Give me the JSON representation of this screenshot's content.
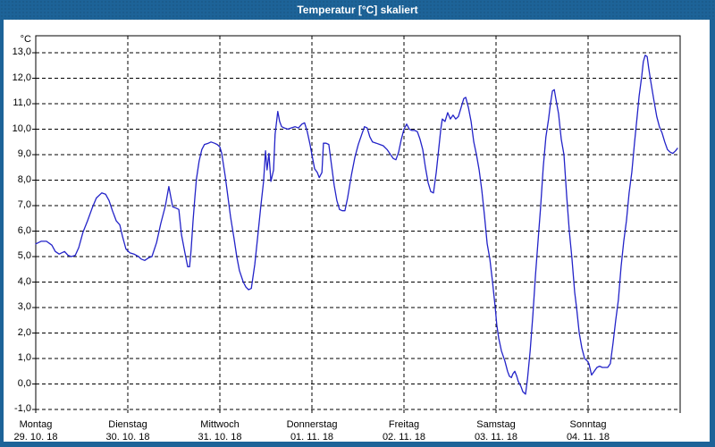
{
  "window": {
    "title": "Temperatur [°C] skaliert"
  },
  "colors": {
    "frame": "#1d6398",
    "title_text": "#ffffff",
    "plot_line": "#2323c8",
    "grid": "#000000",
    "background": "#ffffff"
  },
  "chart_data": {
    "type": "line",
    "title": "Temperatur [°C] skaliert",
    "unit_label": "°C",
    "ylim": [
      -1.0,
      13.0
    ],
    "xlim_hours": [
      0,
      168
    ],
    "grid": "dashed",
    "legend": "none",
    "y_ticks": [
      "13,0",
      "12,0",
      "11,0",
      "10,0",
      "9,0",
      "8,0",
      "7,0",
      "6,0",
      "5,0",
      "4,0",
      "3,0",
      "2,0",
      "1,0",
      "0,0",
      "-1,0"
    ],
    "x_days": [
      {
        "name": "Montag",
        "date": "29. 10. 18"
      },
      {
        "name": "Dienstag",
        "date": "30. 10. 18"
      },
      {
        "name": "Mittwoch",
        "date": "31. 10. 18"
      },
      {
        "name": "Donnerstag",
        "date": "01. 11. 18"
      },
      {
        "name": "Freitag",
        "date": "02. 11. 18"
      },
      {
        "name": "Samstag",
        "date": "03. 11. 18"
      },
      {
        "name": "Sonntag",
        "date": "04. 11. 18"
      }
    ],
    "series": [
      {
        "name": "Temperatur",
        "color": "#2323c8",
        "points": [
          [
            0,
            5.5
          ],
          [
            1.4,
            5.6
          ],
          [
            2.8,
            5.6
          ],
          [
            4.2,
            5.45
          ],
          [
            5.1,
            5.2
          ],
          [
            6.1,
            5.1
          ],
          [
            7.5,
            5.2
          ],
          [
            8.4,
            5.05
          ],
          [
            9.3,
            5.0
          ],
          [
            10.3,
            5.05
          ],
          [
            11.2,
            5.35
          ],
          [
            12.3,
            5.95
          ],
          [
            13.5,
            6.4
          ],
          [
            14.7,
            6.9
          ],
          [
            15.8,
            7.3
          ],
          [
            17.2,
            7.5
          ],
          [
            18.2,
            7.45
          ],
          [
            19.1,
            7.2
          ],
          [
            20,
            6.8
          ],
          [
            21,
            6.4
          ],
          [
            21.9,
            6.25
          ],
          [
            22.6,
            5.8
          ],
          [
            23.5,
            5.3
          ],
          [
            24.5,
            5.15
          ],
          [
            25.6,
            5.1
          ],
          [
            26.8,
            5.0
          ],
          [
            27.5,
            4.9
          ],
          [
            28.4,
            4.85
          ],
          [
            29.4,
            4.95
          ],
          [
            30.3,
            5.0
          ],
          [
            31.5,
            5.55
          ],
          [
            32.6,
            6.3
          ],
          [
            33.8,
            7.0
          ],
          [
            34.7,
            7.75
          ],
          [
            35.7,
            6.95
          ],
          [
            36.6,
            6.9
          ],
          [
            37.3,
            6.85
          ],
          [
            38,
            5.85
          ],
          [
            38.9,
            5.15
          ],
          [
            39.6,
            4.6
          ],
          [
            40.1,
            4.6
          ],
          [
            40.5,
            5.25
          ],
          [
            41,
            6.4
          ],
          [
            41.5,
            7.35
          ],
          [
            41.9,
            8.05
          ],
          [
            42.6,
            8.75
          ],
          [
            43.3,
            9.2
          ],
          [
            44,
            9.4
          ],
          [
            45,
            9.45
          ],
          [
            45.7,
            9.5
          ],
          [
            46.6,
            9.45
          ],
          [
            47.3,
            9.4
          ],
          [
            48,
            9.3
          ],
          [
            48.5,
            9.05
          ],
          [
            49.4,
            8.15
          ],
          [
            50.1,
            7.35
          ],
          [
            50.8,
            6.55
          ],
          [
            51.7,
            5.7
          ],
          [
            52.4,
            5.0
          ],
          [
            53.1,
            4.45
          ],
          [
            54.1,
            4.0
          ],
          [
            54.8,
            3.8
          ],
          [
            55.5,
            3.7
          ],
          [
            56.2,
            3.75
          ],
          [
            57.1,
            4.7
          ],
          [
            57.8,
            5.7
          ],
          [
            58.7,
            7.0
          ],
          [
            59.4,
            7.95
          ],
          [
            59.9,
            9.15
          ],
          [
            60.3,
            8.4
          ],
          [
            60.8,
            9.05
          ],
          [
            61.3,
            7.95
          ],
          [
            62,
            8.4
          ],
          [
            62.4,
            9.8
          ],
          [
            63.1,
            10.7
          ],
          [
            63.6,
            10.3
          ],
          [
            64.1,
            10.1
          ],
          [
            64.8,
            10.05
          ],
          [
            65.7,
            10.0
          ],
          [
            66.6,
            10.05
          ],
          [
            67.6,
            10.1
          ],
          [
            68.5,
            10.05
          ],
          [
            69.4,
            10.2
          ],
          [
            70.1,
            10.25
          ],
          [
            70.8,
            9.9
          ],
          [
            71.5,
            9.4
          ],
          [
            72,
            9.0
          ],
          [
            72.7,
            8.45
          ],
          [
            73.4,
            8.3
          ],
          [
            73.9,
            8.1
          ],
          [
            74.6,
            8.3
          ],
          [
            75,
            9.45
          ],
          [
            75.7,
            9.45
          ],
          [
            76.4,
            9.4
          ],
          [
            77.1,
            8.6
          ],
          [
            77.8,
            7.8
          ],
          [
            78.5,
            7.2
          ],
          [
            79.2,
            6.85
          ],
          [
            79.9,
            6.8
          ],
          [
            80.6,
            6.8
          ],
          [
            81.3,
            7.3
          ],
          [
            82.3,
            8.2
          ],
          [
            83.2,
            8.9
          ],
          [
            84.1,
            9.4
          ],
          [
            85,
            9.8
          ],
          [
            85.7,
            10.1
          ],
          [
            86.4,
            10.05
          ],
          [
            87.1,
            9.7
          ],
          [
            87.8,
            9.5
          ],
          [
            88.8,
            9.45
          ],
          [
            89.7,
            9.4
          ],
          [
            90.6,
            9.35
          ],
          [
            91.6,
            9.2
          ],
          [
            92.5,
            9.0
          ],
          [
            93.2,
            8.85
          ],
          [
            93.9,
            8.8
          ],
          [
            94.6,
            9.1
          ],
          [
            95.3,
            9.6
          ],
          [
            96,
            10.0
          ],
          [
            96.7,
            10.2
          ],
          [
            97.4,
            10.0
          ],
          [
            98.1,
            9.95
          ],
          [
            98.8,
            9.95
          ],
          [
            99.5,
            9.9
          ],
          [
            100.2,
            9.6
          ],
          [
            100.9,
            9.2
          ],
          [
            101.6,
            8.5
          ],
          [
            102.3,
            7.9
          ],
          [
            103,
            7.55
          ],
          [
            103.7,
            7.5
          ],
          [
            104.4,
            8.3
          ],
          [
            104.9,
            9.0
          ],
          [
            105.6,
            10.0
          ],
          [
            106,
            10.4
          ],
          [
            106.7,
            10.3
          ],
          [
            107.4,
            10.65
          ],
          [
            108.1,
            10.4
          ],
          [
            108.8,
            10.55
          ],
          [
            109.5,
            10.4
          ],
          [
            110.2,
            10.5
          ],
          [
            110.9,
            10.85
          ],
          [
            111.6,
            11.2
          ],
          [
            112.1,
            11.25
          ],
          [
            112.8,
            10.85
          ],
          [
            113.5,
            10.3
          ],
          [
            114.2,
            9.5
          ],
          [
            114.9,
            9.0
          ],
          [
            115.6,
            8.4
          ],
          [
            116.3,
            7.6
          ],
          [
            117,
            6.6
          ],
          [
            117.7,
            5.5
          ],
          [
            118.4,
            4.9
          ],
          [
            119.1,
            4.0
          ],
          [
            119.8,
            3.0
          ],
          [
            120.2,
            2.3
          ],
          [
            120.7,
            1.8
          ],
          [
            121.4,
            1.3
          ],
          [
            122.3,
            0.9
          ],
          [
            123,
            0.5
          ],
          [
            123.5,
            0.3
          ],
          [
            124,
            0.25
          ],
          [
            124.4,
            0.4
          ],
          [
            124.9,
            0.5
          ],
          [
            125.4,
            0.3
          ],
          [
            125.8,
            0.1
          ],
          [
            126.5,
            -0.1
          ],
          [
            127,
            -0.3
          ],
          [
            127.7,
            -0.4
          ],
          [
            128.2,
            0.2
          ],
          [
            128.9,
            1.3
          ],
          [
            129.6,
            2.7
          ],
          [
            130.3,
            4.3
          ],
          [
            131,
            5.7
          ],
          [
            131.6,
            6.9
          ],
          [
            132.3,
            8.5
          ],
          [
            133,
            9.7
          ],
          [
            133.7,
            10.4
          ],
          [
            134.2,
            11.0
          ],
          [
            134.7,
            11.5
          ],
          [
            135.2,
            11.55
          ],
          [
            135.6,
            11.2
          ],
          [
            136.3,
            10.6
          ],
          [
            137,
            9.6
          ],
          [
            137.7,
            9.0
          ],
          [
            138.4,
            7.4
          ],
          [
            139.1,
            6.0
          ],
          [
            139.8,
            4.9
          ],
          [
            140.5,
            3.6
          ],
          [
            141,
            3.0
          ],
          [
            141.7,
            2.0
          ],
          [
            142.4,
            1.4
          ],
          [
            143.1,
            1.0
          ],
          [
            143.8,
            0.9
          ],
          [
            144.2,
            0.8
          ],
          [
            144.9,
            0.35
          ],
          [
            145.6,
            0.5
          ],
          [
            146.3,
            0.65
          ],
          [
            147,
            0.7
          ],
          [
            147.7,
            0.65
          ],
          [
            148.4,
            0.65
          ],
          [
            149.1,
            0.65
          ],
          [
            149.8,
            0.8
          ],
          [
            150.5,
            1.6
          ],
          [
            151.2,
            2.5
          ],
          [
            151.9,
            3.3
          ],
          [
            152.6,
            4.6
          ],
          [
            153.3,
            5.6
          ],
          [
            154,
            6.4
          ],
          [
            154.7,
            7.5
          ],
          [
            155.4,
            8.3
          ],
          [
            156.1,
            9.45
          ],
          [
            156.8,
            10.5
          ],
          [
            157.3,
            11.3
          ],
          [
            158,
            12.1
          ],
          [
            158.4,
            12.65
          ],
          [
            158.9,
            12.9
          ],
          [
            159.4,
            12.85
          ],
          [
            159.8,
            12.4
          ],
          [
            160.3,
            11.9
          ],
          [
            161.2,
            11.1
          ],
          [
            161.9,
            10.5
          ],
          [
            162.6,
            10.1
          ],
          [
            163.3,
            9.85
          ],
          [
            164,
            9.5
          ],
          [
            164.7,
            9.2
          ],
          [
            165.4,
            9.1
          ],
          [
            166.1,
            9.05
          ],
          [
            166.8,
            9.15
          ],
          [
            167.3,
            9.25
          ]
        ]
      }
    ]
  }
}
